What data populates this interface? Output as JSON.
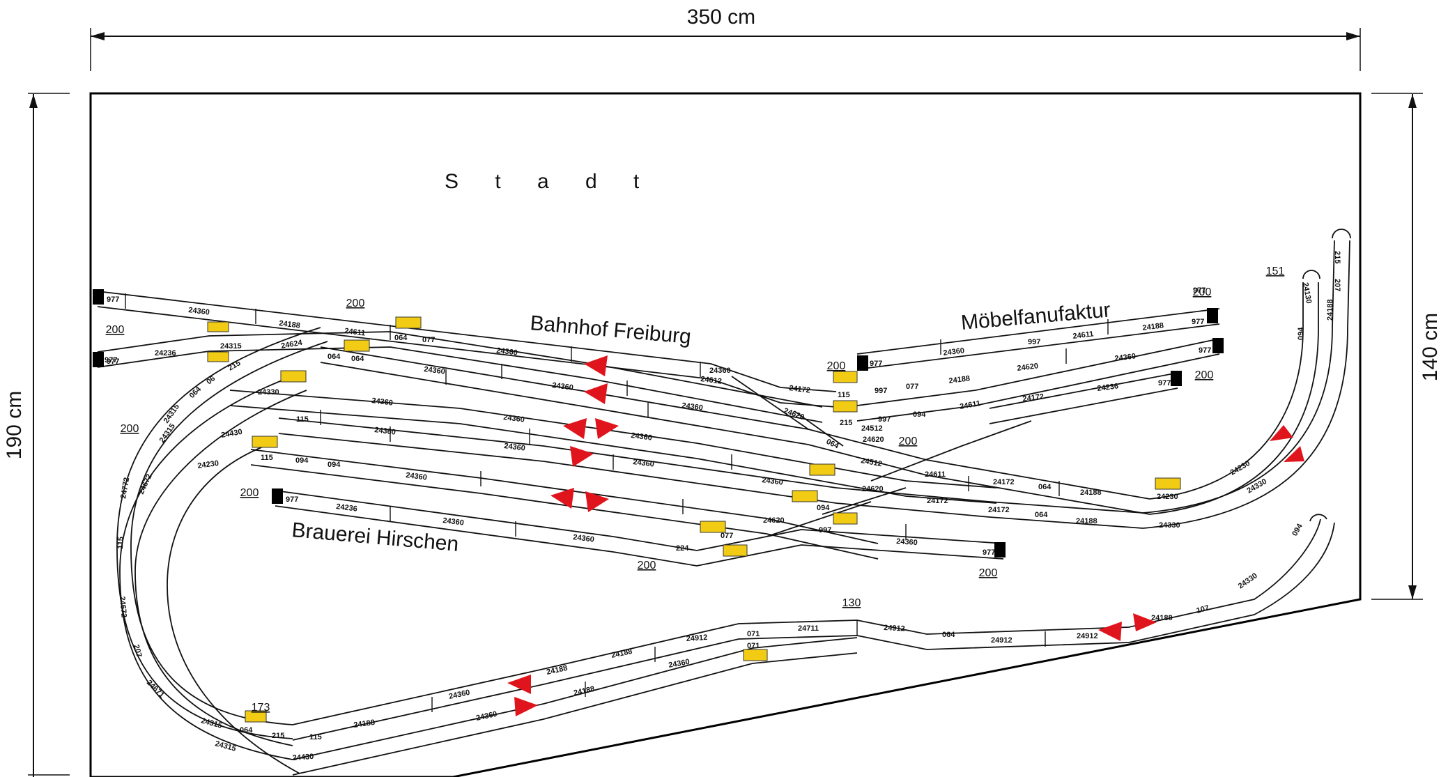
{
  "dimensions": {
    "width": "350 cm",
    "height_left": "190 cm",
    "height_right": "140 cm"
  },
  "areas": {
    "city": "S t a d t",
    "station": "Bahnhof Freiburg",
    "factory": "Möbelfanufaktur",
    "brewery": "Brauerei Hirschen"
  },
  "elevations": {
    "e1": "200",
    "e2": "200",
    "e3": "200",
    "e4": "200",
    "e5": "200",
    "e6": "200",
    "e7": "200",
    "e8": "200",
    "e9": "200",
    "e10": "200",
    "e11": "151",
    "e12": "130",
    "e13": "173"
  },
  "track_labels": {
    "t1": "24360",
    "t2": "24188",
    "t3": "24611",
    "t4": "064",
    "t5": "077",
    "t6": "24360",
    "t7": "24612",
    "t8": "24172",
    "t9": "24236",
    "t10": "24315",
    "t11": "24624",
    "t12": "24360",
    "t13": "24360",
    "t14": "24620",
    "t15": "115",
    "t16": "24330",
    "t17": "24360",
    "t18": "24360",
    "t19": "24360",
    "t20": "24430",
    "t21": "115",
    "t22": "24360",
    "t23": "24360",
    "t24": "24360",
    "t25": "24230",
    "t26": "115",
    "t27": "094",
    "t28": "094",
    "t29": "24360",
    "t30": "24360",
    "t31": "24360",
    "t32": "24236",
    "t33": "24360",
    "t34": "24360",
    "t35": "224",
    "t36": "077",
    "t37": "24620",
    "t38": "094",
    "t39": "24360",
    "t40": "977",
    "t41": "24360",
    "t42": "24611",
    "t43": "24188",
    "t44": "977",
    "t45": "24360",
    "t46": "24620",
    "t47": "24188",
    "t48": "24611",
    "t49": "24172",
    "t50": "24236",
    "t51": "24512",
    "t52": "24611",
    "t53": "24172",
    "t54": "064",
    "t55": "24188",
    "t56": "24230",
    "t57": "24620",
    "t58": "24172",
    "t59": "24172",
    "t60": "064",
    "t61": "24188",
    "t62": "24330",
    "t63": "24230",
    "t64": "24330",
    "t65": "24130",
    "t66": "094",
    "t67": "215",
    "t68": "207",
    "t69": "24188",
    "t70": "24912",
    "t71": "071",
    "t72": "24711",
    "t73": "24912",
    "t74": "064",
    "t75": "24912",
    "t76": "24912",
    "t77": "24188",
    "t78": "107",
    "t79": "24330",
    "t80": "094",
    "t81": "24188",
    "t82": "24360",
    "t83": "24188",
    "t84": "24360",
    "t85": "24188",
    "t86": "24360",
    "t87": "24188",
    "t88": "24315",
    "t89": "064",
    "t90": "215",
    "t91": "115",
    "t92": "24430",
    "t93": "24315",
    "t94": "24671",
    "t95": "207",
    "t96": "24672",
    "t97": "115",
    "t98": "24672",
    "t99": "24772",
    "t100": "24315",
    "t101": "24315",
    "t102": "064",
    "t103": "06",
    "t104": "215",
    "t105": "977",
    "t106": "977",
    "t107": "977",
    "t108": "977",
    "t109": "977",
    "t110": "977",
    "t111": "997",
    "t112": "997",
    "t113": "997",
    "t114": "997",
    "t115": "077",
    "t116": "094",
    "t117": "215",
    "t118": "064",
    "t119": "071",
    "t120": "24512",
    "t121": "24620",
    "t122": "064",
    "t123": "064",
    "t124": "977",
    "t125": "24360",
    "t126": "977"
  }
}
